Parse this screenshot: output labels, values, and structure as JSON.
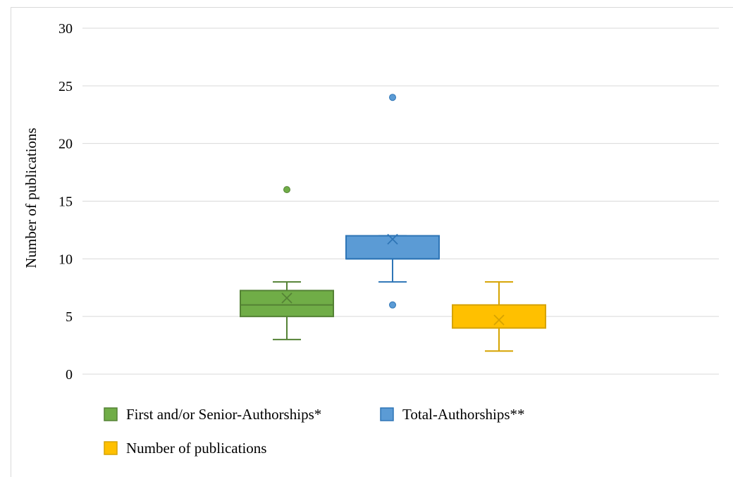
{
  "chart_data": {
    "type": "box",
    "title": "",
    "xlabel": "",
    "ylabel": "Number of publications",
    "ylim": [
      0,
      30
    ],
    "yticks": [
      0,
      5,
      10,
      15,
      20,
      25,
      30
    ],
    "grid": true,
    "legend_position": "bottom",
    "series": [
      {
        "name": "First and/or Senior-Authorships*",
        "color": "#70ad47",
        "edge_color": "#548235",
        "whisker_low": 3,
        "q1": 5,
        "median": 6,
        "q3": 7.25,
        "whisker_high": 8,
        "mean": 6.6,
        "outliers": [
          16
        ]
      },
      {
        "name": "Total-Authorships**",
        "color": "#5b9bd5",
        "edge_color": "#2e75b6",
        "whisker_low": 8,
        "q1": 10,
        "median": 10,
        "q3": 12,
        "whisker_high": 12,
        "mean": 11.7,
        "outliers": [
          6,
          24
        ]
      },
      {
        "name": "Number of publications",
        "color": "#ffc000",
        "edge_color": "#d6a300",
        "whisker_low": 2,
        "q1": 4,
        "median": 4,
        "q3": 6,
        "whisker_high": 8,
        "mean": 4.7,
        "outliers": []
      }
    ]
  }
}
